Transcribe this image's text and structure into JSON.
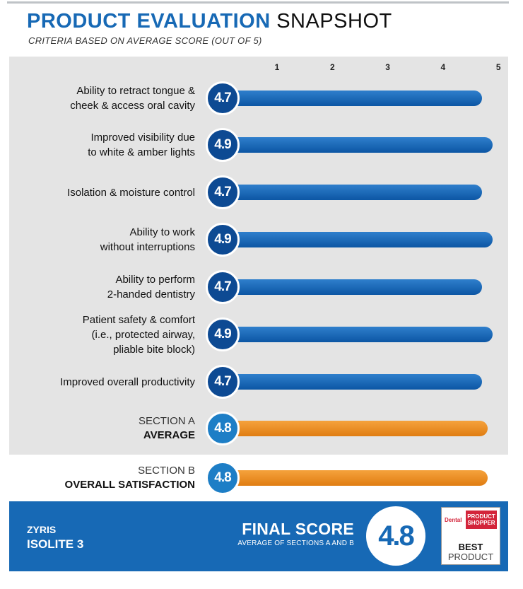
{
  "header": {
    "title_bold": "PRODUCT EVALUATION",
    "title_light": "SNAPSHOT",
    "subtitle": "CRITERIA BASED ON AVERAGE SCORE (OUT OF 5)"
  },
  "chart_data": {
    "type": "bar",
    "orientation": "horizontal",
    "xlim": [
      0,
      5
    ],
    "ticks": [
      "1",
      "2",
      "3",
      "4",
      "5"
    ],
    "categories": [
      [
        "Ability to retract tongue &",
        "cheek & access oral cavity"
      ],
      [
        "Improved visibility due",
        "to white & amber lights"
      ],
      [
        "Isolation & moisture control"
      ],
      [
        "Ability to work",
        "without interruptions"
      ],
      [
        "Ability to perform",
        "2-handed dentistry"
      ],
      [
        "Patient safety & comfort",
        "(i.e., protected airway,",
        "pliable bite block)"
      ],
      [
        "Improved overall productivity"
      ]
    ],
    "values": [
      4.7,
      4.9,
      4.7,
      4.9,
      4.7,
      4.9,
      4.7
    ],
    "value_labels": [
      "4.7",
      "4.9",
      "4.7",
      "4.9",
      "4.7",
      "4.9",
      "4.7"
    ],
    "bar_color": "#1565b5",
    "summary": [
      {
        "section": "SECTION A",
        "label": "AVERAGE",
        "value": 4.8,
        "value_label": "4.8"
      },
      {
        "section": "SECTION B",
        "label": "OVERALL SATISFACTION",
        "value": 4.8,
        "value_label": "4.8"
      }
    ],
    "summary_color": "#f0901e"
  },
  "footer": {
    "brand": "ZYRIS",
    "product": "ISOLITE 3",
    "final_label": "FINAL SCORE",
    "final_sub": "AVERAGE OF SECTIONS A AND B",
    "final_score": "4.8",
    "award_dental": "Dental",
    "award_line1": "PRODUCT",
    "award_line2": "SHOPPER",
    "award_best": "BEST",
    "award_product": "PRODUCT"
  },
  "colors": {
    "brand_blue": "#1769b5",
    "panel_gray": "#e4e4e4",
    "orange": "#f0901e"
  }
}
